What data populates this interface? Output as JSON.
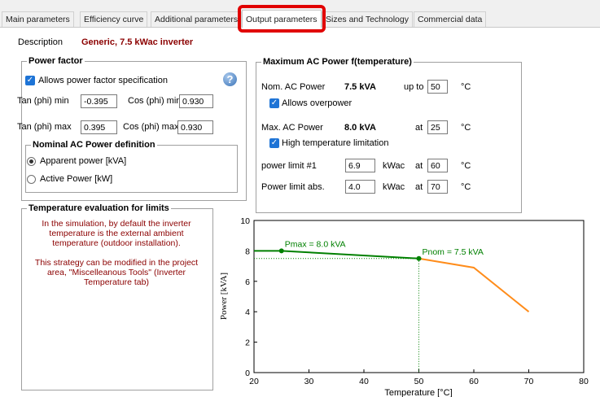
{
  "tabs": [
    {
      "label": "Main parameters"
    },
    {
      "label": "Efficiency curve"
    },
    {
      "label": "Additional parameters"
    },
    {
      "label": "Output parameters"
    },
    {
      "label": "Sizes and Technology"
    },
    {
      "label": "Commercial data"
    }
  ],
  "description": {
    "label": "Description",
    "value": "Generic,  7.5 kWac inverter"
  },
  "power_factor": {
    "title": "Power factor",
    "allow_label": "Allows power factor specification",
    "allow_checked": true,
    "help_glyph": "?",
    "tan_min_label": "Tan (phi) min",
    "tan_min": "-0.395",
    "cos_min_label": "Cos (phi) min",
    "cos_min": "0.930",
    "tan_max_label": "Tan (phi) max",
    "tan_max": "0.395",
    "cos_max_label": "Cos (phi) max",
    "cos_max": "0.930"
  },
  "nominal_def": {
    "title": "Nominal AC Power definition",
    "apparent_label": "Apparent power [kVA]",
    "active_label": "Active Power [kW]",
    "selected": "apparent"
  },
  "temp_eval": {
    "title": "Temperature evaluation for limits",
    "lines": [
      "In the simulation, by default the inverter",
      "temperature is the external ambient",
      "temperature (outdoor installation).",
      "",
      "This strategy can be modified in the project",
      "area, \"Miscelleanous Tools\" (Inverter",
      "Temperature tab)"
    ]
  },
  "max_ac": {
    "title": "Maximum AC Power f(temperature)",
    "nom_label": "Nom. AC Power",
    "nom_value": "7.5 kVA",
    "upto_label": "up to",
    "upto_value": "50",
    "deg_unit": "°C",
    "overpower_label": "Allows overpower",
    "max_label": "Max. AC Power",
    "max_value": "8.0 kVA",
    "at_label": "at",
    "max_at": "25",
    "hightemp_label": "High temperature limitation",
    "limit1_label": "power limit #1",
    "limit1_value": "6.9",
    "limit1_unit": "kWac",
    "limit1_at": "60",
    "limitabs_label": "Power limit abs.",
    "limitabs_value": "4.0",
    "limitabs_unit": "kWac",
    "limitabs_at": "70"
  },
  "chart_data": {
    "type": "line",
    "xlabel": "Temperature [°C]",
    "ylabel": "Power [kVA]",
    "xlim": [
      20,
      80
    ],
    "ylim": [
      0,
      10
    ],
    "xticks": [
      20,
      30,
      40,
      50,
      60,
      70,
      80
    ],
    "yticks": [
      0,
      2,
      4,
      6,
      8,
      10
    ],
    "series": [
      {
        "color": "#008000",
        "x": [
          20,
          25,
          50
        ],
        "y": [
          8.0,
          8.0,
          7.5
        ]
      },
      {
        "color": "#ff8c1a",
        "x": [
          50,
          60,
          70
        ],
        "y": [
          7.5,
          6.9,
          4.0
        ]
      }
    ],
    "markers": [
      {
        "x": 25,
        "y": 8.0,
        "label": "Pmax = 8.0 kVA"
      },
      {
        "x": 50,
        "y": 7.5,
        "label": "Pnom = 7.5 kVA"
      }
    ],
    "guide_color": "#008000",
    "grid": false
  }
}
